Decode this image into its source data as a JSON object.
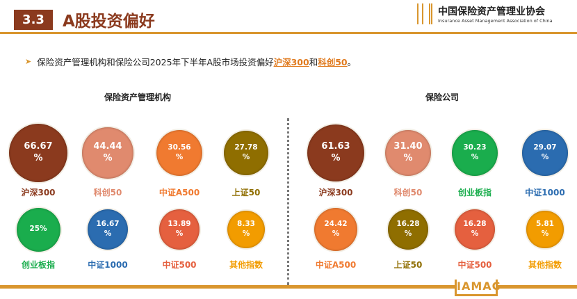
{
  "header": {
    "section_number": "3.3",
    "title": "A股投资偏好"
  },
  "logo": {
    "name_cn": "中国保险资产管理业协会",
    "name_en": "Insurance Asset Management Association of China",
    "mark": "IAMAC"
  },
  "bullet": {
    "text_before": "保险资产管理机构和保险公司2025年下半年A股市场投资偏好",
    "highlight1": "沪深300",
    "connector": "和",
    "highlight2": "科创50",
    "end": "。"
  },
  "chart_data": [
    {
      "type": "bubble",
      "title": "保险资产管理机构",
      "unit": "%",
      "items": [
        {
          "label": "沪深300",
          "value": 66.67,
          "text": "66.67 %",
          "color": "#8b3a1e"
        },
        {
          "label": "科创50",
          "value": 44.44,
          "text": "44.44 %",
          "color": "#e08a6e"
        },
        {
          "label": "中证A500",
          "value": 30.56,
          "text": "30.56 %",
          "color": "#f07a30"
        },
        {
          "label": "上证50",
          "value": 27.78,
          "text": "27.78 %",
          "color": "#8f6e00"
        },
        {
          "label": "创业板指",
          "value": 25,
          "text": "25%",
          "color": "#1aad4d"
        },
        {
          "label": "中证1000",
          "value": 16.67,
          "text": "16.67 %",
          "color": "#2b6cb0"
        },
        {
          "label": "中证500",
          "value": 13.89,
          "text": "13.89 %",
          "color": "#e5603f"
        },
        {
          "label": "其他指数",
          "value": 8.33,
          "text": "8.33 %",
          "color": "#f29c00"
        }
      ]
    },
    {
      "type": "bubble",
      "title": "保险公司",
      "unit": "%",
      "items": [
        {
          "label": "沪深300",
          "value": 61.63,
          "text": "61.63 %",
          "color": "#8b3a1e"
        },
        {
          "label": "科创50",
          "value": 31.4,
          "text": "31.40 %",
          "color": "#e08a6e"
        },
        {
          "label": "创业板指",
          "value": 30.23,
          "text": "30.23 %",
          "color": "#1aad4d"
        },
        {
          "label": "中证1000",
          "value": 29.07,
          "text": "29.07 %",
          "color": "#2b6cb0"
        },
        {
          "label": "中证A500",
          "value": 24.42,
          "text": "24.42 %",
          "color": "#f07a30"
        },
        {
          "label": "上证50",
          "value": 16.28,
          "text": "16.28 %",
          "color": "#8f6e00"
        },
        {
          "label": "中证500",
          "value": 16.28,
          "text": "16.28 %",
          "color": "#e5603f"
        },
        {
          "label": "其他指数",
          "value": 5.81,
          "text": "5.81 %",
          "color": "#f29c00"
        }
      ]
    }
  ]
}
